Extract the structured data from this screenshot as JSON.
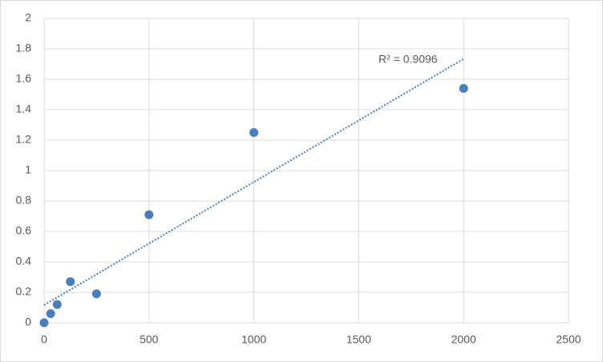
{
  "chart_data": {
    "type": "scatter",
    "x": [
      0,
      31.25,
      62.5,
      125,
      250,
      500,
      1000,
      2000
    ],
    "values": [
      0,
      0.06,
      0.12,
      0.27,
      0.19,
      0.71,
      1.25,
      1.54
    ],
    "color": "#4a7ebb",
    "trendline": "linear",
    "annotation": "R² = 0.9096",
    "xlim": [
      0,
      2500
    ],
    "xticks": [
      0,
      500,
      1000,
      1500,
      2000,
      2500
    ],
    "ylim": [
      0,
      2
    ],
    "yticks": [
      0,
      0.2,
      0.4,
      0.6,
      0.8,
      1,
      1.2,
      1.4,
      1.6,
      1.8,
      2
    ],
    "grid": true
  }
}
